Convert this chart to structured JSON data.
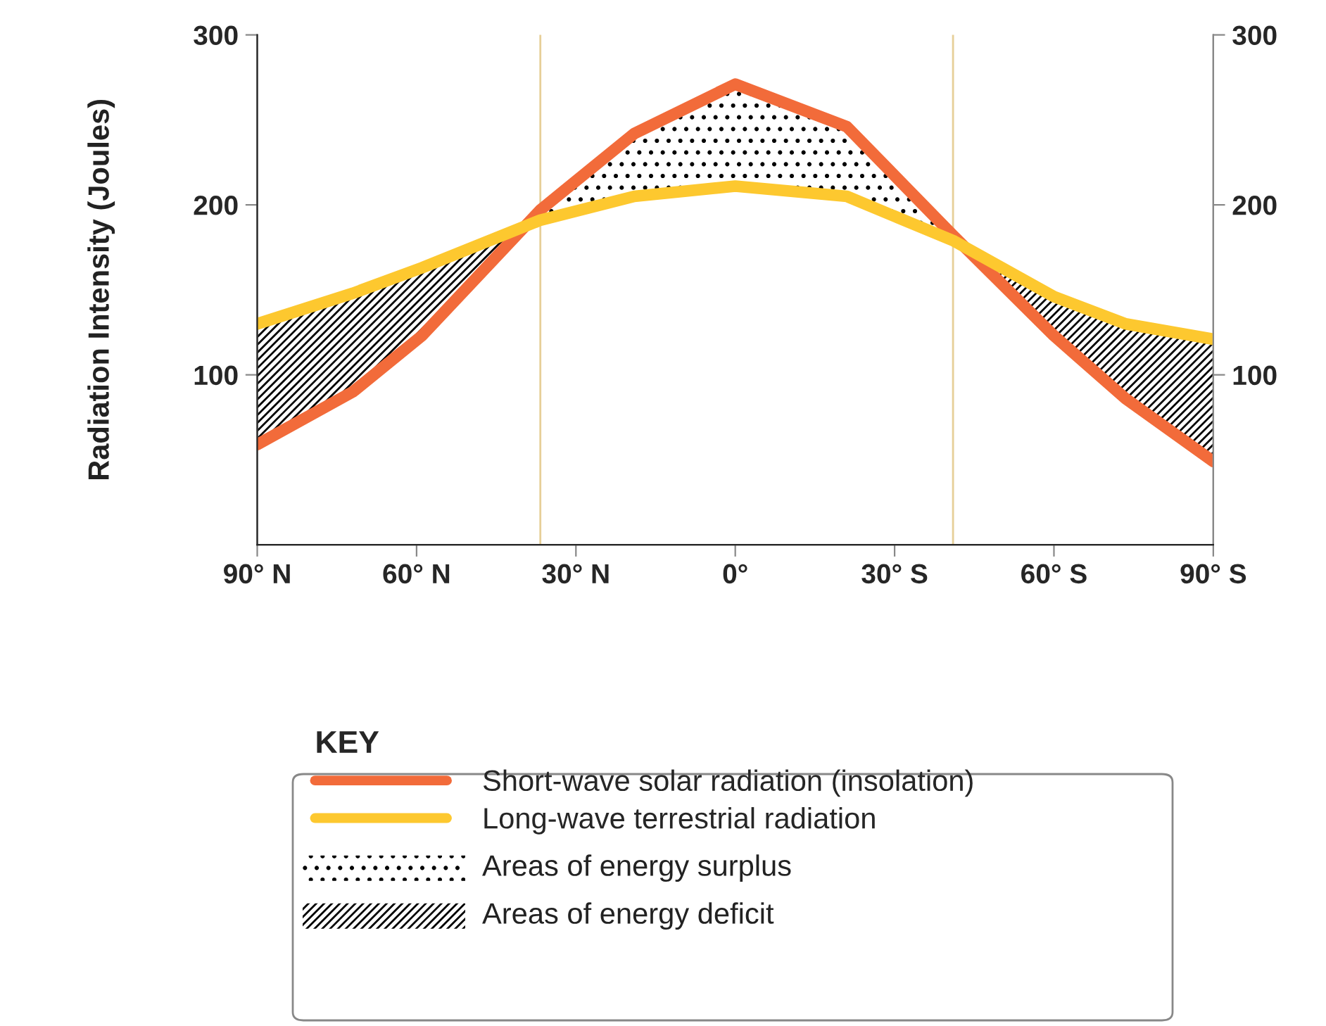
{
  "chart_data": {
    "type": "line",
    "ylabel": "Radiation Intensity (Joules)",
    "legend_title": "KEY",
    "legend": "bottom",
    "grid": false,
    "xlim": [
      -90,
      90
    ],
    "xticks": [
      {
        "value": -90,
        "label": "90° N"
      },
      {
        "value": -60,
        "label": "60° N"
      },
      {
        "value": -30,
        "label": "30° N"
      },
      {
        "value": 0,
        "label": "0°"
      },
      {
        "value": 30,
        "label": "30° S"
      },
      {
        "value": 60,
        "label": "60° S"
      },
      {
        "value": 90,
        "label": "90° S"
      }
    ],
    "ylim": [
      0,
      300
    ],
    "yticks": [
      100,
      200,
      300
    ],
    "y2lim": [
      0,
      300
    ],
    "y2ticks": [
      100,
      200,
      300
    ],
    "series": [
      {
        "name": "Short-wave solar radiation (insolation)",
        "color": "#f26b3a",
        "x": [
          -90,
          -72,
          -59,
          -36.7,
          -19,
          0,
          21,
          41,
          60,
          73.5,
          90
        ],
        "values": [
          59,
          90,
          123,
          197,
          242,
          271,
          246,
          182,
          123,
          86,
          49
        ]
      },
      {
        "name": "Long-wave terrestrial radiation",
        "color": "#fdc82f",
        "x": [
          -90,
          -72,
          -59,
          -36.7,
          -19,
          0,
          21,
          41,
          60,
          73.5,
          90
        ],
        "values": [
          130,
          148,
          163,
          191,
          205,
          211,
          205,
          179,
          146,
          130,
          121
        ]
      }
    ],
    "annotations": [
      "Areas of energy surplus",
      "Areas of energy deficit"
    ],
    "ref_lines": [
      {
        "axis": "x",
        "value": -36.7,
        "color": "#e6cf98"
      },
      {
        "axis": "x",
        "value": 41,
        "color": "#e6cf98"
      }
    ]
  }
}
